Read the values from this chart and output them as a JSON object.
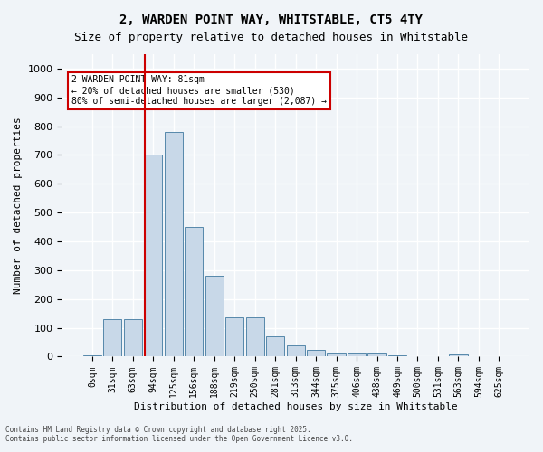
{
  "title_line1": "2, WARDEN POINT WAY, WHITSTABLE, CT5 4TY",
  "title_line2": "Size of property relative to detached houses in Whitstable",
  "xlabel": "Distribution of detached houses by size in Whitstable",
  "ylabel": "Number of detached properties",
  "bar_color": "#c8d8e8",
  "bar_edge_color": "#5588aa",
  "vline_color": "#cc0000",
  "vline_x": 2.6,
  "annotation_title": "2 WARDEN POINT WAY: 81sqm",
  "annotation_line2": "← 20% of detached houses are smaller (530)",
  "annotation_line3": "80% of semi-detached houses are larger (2,087) →",
  "categories": [
    "0sqm",
    "31sqm",
    "63sqm",
    "94sqm",
    "125sqm",
    "156sqm",
    "188sqm",
    "219sqm",
    "250sqm",
    "281sqm",
    "313sqm",
    "344sqm",
    "375sqm",
    "406sqm",
    "438sqm",
    "469sqm",
    "500sqm",
    "531sqm",
    "563sqm",
    "594sqm",
    "625sqm"
  ],
  "values": [
    5,
    130,
    130,
    700,
    780,
    450,
    280,
    135,
    135,
    70,
    38,
    22,
    10,
    10,
    10,
    5,
    0,
    0,
    8,
    0,
    0
  ],
  "ylim": [
    0,
    1050
  ],
  "yticks": [
    0,
    100,
    200,
    300,
    400,
    500,
    600,
    700,
    800,
    900,
    1000
  ],
  "background_color": "#f0f4f8",
  "grid_color": "#ffffff",
  "footer_line1": "Contains HM Land Registry data © Crown copyright and database right 2025.",
  "footer_line2": "Contains public sector information licensed under the Open Government Licence v3.0."
}
